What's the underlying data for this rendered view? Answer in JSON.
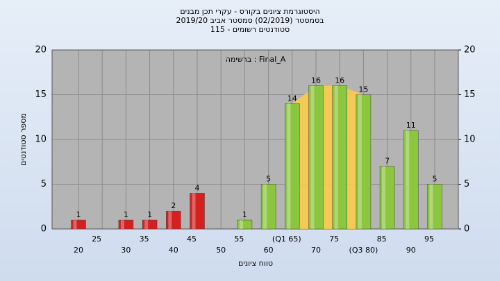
{
  "chart_data": {
    "type": "bar",
    "title": "היסטוגרמת ציונים בקורס - עקרי תכן מבנים",
    "subtitle": "בסמסטר  (02/2019)  סמסטר אביב 2019/20",
    "subtitle2": "סטודנטים רשומים - 115",
    "annotation": "ברשימה : Final_A",
    "x_label": "טווח ציונים",
    "y_label": "מספר סטודנטים",
    "categories": [
      "20",
      "25",
      "30",
      "35",
      "40",
      "45",
      "50",
      "55",
      "60",
      "(Q1 65)",
      "70",
      "75",
      "(Q3 80)",
      "85",
      "90",
      "95"
    ],
    "values": [
      1,
      0,
      1,
      1,
      2,
      4,
      0,
      1,
      5,
      14,
      16,
      16,
      15,
      7,
      11,
      5
    ],
    "colors": [
      "#d42020",
      "#d42020",
      "#d42020",
      "#d42020",
      "#d42020",
      "#d42020",
      "#d42020",
      "#8cc63f",
      "#8cc63f",
      "#8cc63f",
      "#8cc63f",
      "#8cc63f",
      "#8cc63f",
      "#8cc63f",
      "#8cc63f",
      "#8cc63f"
    ],
    "quartile_color": "#ffcc44",
    "ylim": [
      0,
      20
    ],
    "yticks": [
      0,
      5,
      10,
      15,
      20
    ],
    "y2lim": [
      0,
      20
    ],
    "y2ticks": [
      0,
      5,
      10,
      15,
      20
    ],
    "grid": true
  }
}
